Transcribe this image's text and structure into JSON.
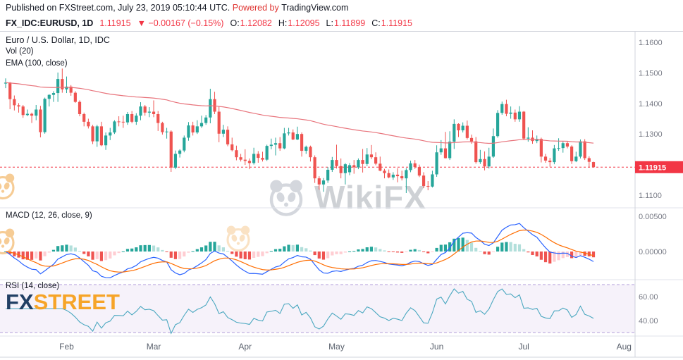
{
  "publish_bar": {
    "prefix": "Published on ",
    "site": "FXStreet.com",
    "datetime": ", July 23, 2019 05:10:44 UTC. ",
    "powered_by": "Powered by ",
    "provider": "TradingView.com"
  },
  "symbol_bar": {
    "symbol": "FX_IDC:EURUSD, 1D",
    "last": "1.11915",
    "change": "▼ −0.00167 (−0.15%)",
    "o_label": "O:",
    "o": "1.12082",
    "h_label": "H:",
    "h": "1.12095",
    "l_label": "L:",
    "l": "1.11899",
    "c_label": "C:",
    "c": "1.11915"
  },
  "main_pane": {
    "legend_title": "Euro / U.S. Dollar, 1D, IDC",
    "legend_vol": "Vol (20)",
    "legend_ema": "EMA (100, close)",
    "price_labels": [
      "1.1600",
      "1.1500",
      "1.1400",
      "1.1300",
      "1.1100"
    ],
    "price_badge": "1.11915"
  },
  "macd_pane": {
    "legend": "MACD (12, 26, close, 9)",
    "axis_labels": [
      "0.00500",
      "0.00000"
    ]
  },
  "rsi_pane": {
    "legend": "RSI (14, close)",
    "axis_labels": [
      "60.00",
      "40.00"
    ]
  },
  "watermarks": {
    "center": "WikiFX",
    "bottom_left_fx": "FX",
    "bottom_left_street": "STREET"
  },
  "colors": {
    "up": "#26a69a",
    "down": "#ef5350",
    "accent_red": "#f23645",
    "ema": "#e8747c",
    "macd_line": "#2962ff",
    "signal_line": "#ff6d00",
    "hist_up": "#26a69a",
    "hist_up_fade": "#b2dfdb",
    "hist_down": "#ef5350",
    "hist_down_fade": "#ffcdd2",
    "rsi_line": "#4ba8c0",
    "rsi_band_fill": "rgba(123,77,182,0.07)",
    "rsi_band_line": "#b39ddb",
    "axis_text": "#787b86",
    "separator": "#e0e3eb",
    "frame": "#d1d4dc"
  },
  "chart_data": {
    "type": "candlestick",
    "symbol": "FX_IDC:EURUSD",
    "interval": "1D",
    "title": "Euro / U.S. Dollar, 1D, IDC",
    "last_price": 1.11915,
    "today_ohlc": {
      "open": 1.12082,
      "high": 1.12095,
      "low": 1.11899,
      "close": 1.11915
    },
    "price_axis_ticks": [
      1.16,
      1.15,
      1.14,
      1.13,
      1.11
    ],
    "macd_axis_ticks": [
      0.005,
      0.0
    ],
    "rsi_axis_ticks": [
      60,
      40
    ],
    "rsi_band": [
      70,
      30
    ],
    "indicators": {
      "ema_period": 100,
      "macd": {
        "fast": 12,
        "slow": 26,
        "source": "close",
        "signal": 9
      },
      "rsi": {
        "period": 14,
        "source": "close"
      },
      "vol_ma": 20
    },
    "months": [
      {
        "label": "Feb",
        "index": 14
      },
      {
        "label": "Mar",
        "index": 34
      },
      {
        "label": "Apr",
        "index": 55
      },
      {
        "label": "May",
        "index": 76
      },
      {
        "label": "Jun",
        "index": 99
      },
      {
        "label": "Jul",
        "index": 119
      },
      {
        "label": "Aug",
        "index": 142
      }
    ],
    "candles": [
      [
        1.1465,
        1.1482,
        1.145,
        1.1468
      ],
      [
        1.1468,
        1.147,
        1.1381,
        1.1414
      ],
      [
        1.1414,
        1.1426,
        1.1377,
        1.1394
      ],
      [
        1.1394,
        1.1401,
        1.137,
        1.139
      ],
      [
        1.139,
        1.1395,
        1.1353,
        1.1362
      ],
      [
        1.1362,
        1.138,
        1.1358,
        1.1366
      ],
      [
        1.1366,
        1.137,
        1.1336,
        1.136
      ],
      [
        1.136,
        1.1395,
        1.1345,
        1.138
      ],
      [
        1.138,
        1.1392,
        1.1289,
        1.1306
      ],
      [
        1.1306,
        1.1419,
        1.1301,
        1.1415
      ],
      [
        1.1415,
        1.143,
        1.139,
        1.1428
      ],
      [
        1.1428,
        1.144,
        1.1405,
        1.1434
      ],
      [
        1.1434,
        1.1501,
        1.1405,
        1.148
      ],
      [
        1.148,
        1.1514,
        1.1435,
        1.1446
      ],
      [
        1.1446,
        1.1488,
        1.1434,
        1.1455
      ],
      [
        1.1455,
        1.146,
        1.1425,
        1.1435
      ],
      [
        1.1435,
        1.144,
        1.1402,
        1.1405
      ],
      [
        1.1405,
        1.141,
        1.1358,
        1.1365
      ],
      [
        1.1365,
        1.137,
        1.1325,
        1.134
      ],
      [
        1.134,
        1.135,
        1.1318,
        1.1325
      ],
      [
        1.1325,
        1.133,
        1.1267,
        1.1276
      ],
      [
        1.1276,
        1.133,
        1.1258,
        1.1325
      ],
      [
        1.1325,
        1.134,
        1.126,
        1.1263
      ],
      [
        1.1263,
        1.1305,
        1.1248,
        1.1295
      ],
      [
        1.1295,
        1.132,
        1.128,
        1.1305
      ],
      [
        1.1305,
        1.1345,
        1.13,
        1.1341
      ],
      [
        1.1341,
        1.1358,
        1.1325,
        1.134
      ],
      [
        1.134,
        1.136,
        1.132,
        1.1338
      ],
      [
        1.1338,
        1.1372,
        1.133,
        1.1365
      ],
      [
        1.1365,
        1.1375,
        1.1335,
        1.134
      ],
      [
        1.134,
        1.1368,
        1.133,
        1.136
      ],
      [
        1.136,
        1.1404,
        1.1345,
        1.139
      ],
      [
        1.139,
        1.1395,
        1.136,
        1.137
      ],
      [
        1.137,
        1.1388,
        1.1355,
        1.1373
      ],
      [
        1.1373,
        1.141,
        1.1355,
        1.1365
      ],
      [
        1.1365,
        1.1375,
        1.131,
        1.1336
      ],
      [
        1.1336,
        1.134,
        1.1298,
        1.1306
      ],
      [
        1.1306,
        1.132,
        1.1285,
        1.1308
      ],
      [
        1.1308,
        1.1312,
        1.1176,
        1.119
      ],
      [
        1.119,
        1.1246,
        1.1185,
        1.1235
      ],
      [
        1.1235,
        1.125,
        1.1223,
        1.1246
      ],
      [
        1.1246,
        1.1295,
        1.124,
        1.1288
      ],
      [
        1.1288,
        1.1339,
        1.1278,
        1.1328
      ],
      [
        1.1328,
        1.134,
        1.1295,
        1.1305
      ],
      [
        1.1305,
        1.1345,
        1.13,
        1.1325
      ],
      [
        1.1325,
        1.136,
        1.132,
        1.1336
      ],
      [
        1.1336,
        1.1362,
        1.133,
        1.1354
      ],
      [
        1.1354,
        1.1448,
        1.1335,
        1.1414
      ],
      [
        1.1414,
        1.1438,
        1.1365,
        1.1373
      ],
      [
        1.1373,
        1.139,
        1.1273,
        1.1301
      ],
      [
        1.1301,
        1.133,
        1.129,
        1.1314
      ],
      [
        1.1314,
        1.1325,
        1.126,
        1.1266
      ],
      [
        1.1266,
        1.1288,
        1.1243,
        1.1247
      ],
      [
        1.1247,
        1.1262,
        1.1214,
        1.1224
      ],
      [
        1.1224,
        1.1235,
        1.121,
        1.1216
      ],
      [
        1.1216,
        1.125,
        1.1199,
        1.1212
      ],
      [
        1.1212,
        1.122,
        1.1185,
        1.1205
      ],
      [
        1.1205,
        1.1255,
        1.12,
        1.1235
      ],
      [
        1.1235,
        1.1244,
        1.1206,
        1.1222
      ],
      [
        1.1222,
        1.1242,
        1.121,
        1.1216
      ],
      [
        1.1216,
        1.1265,
        1.1212,
        1.1261
      ],
      [
        1.1261,
        1.1285,
        1.125,
        1.1265
      ],
      [
        1.1265,
        1.1288,
        1.123,
        1.127
      ],
      [
        1.127,
        1.129,
        1.1245,
        1.1253
      ],
      [
        1.1253,
        1.132,
        1.125,
        1.1302
      ],
      [
        1.1302,
        1.132,
        1.1295,
        1.1305
      ],
      [
        1.1305,
        1.1315,
        1.128,
        1.1282
      ],
      [
        1.1282,
        1.1324,
        1.128,
        1.13
      ],
      [
        1.13,
        1.1305,
        1.1226,
        1.1245
      ],
      [
        1.1245,
        1.1262,
        1.1235,
        1.1258
      ],
      [
        1.1258,
        1.1262,
        1.121,
        1.1224
      ],
      [
        1.1224,
        1.123,
        1.114,
        1.1155
      ],
      [
        1.1155,
        1.1162,
        1.1118,
        1.1135
      ],
      [
        1.1135,
        1.1156,
        1.1111,
        1.1148
      ],
      [
        1.1148,
        1.1192,
        1.114,
        1.1183
      ],
      [
        1.1183,
        1.1225,
        1.1176,
        1.1215
      ],
      [
        1.1215,
        1.1265,
        1.1187,
        1.1195
      ],
      [
        1.1195,
        1.122,
        1.1155,
        1.1172
      ],
      [
        1.1172,
        1.1205,
        1.1135,
        1.1201
      ],
      [
        1.1175,
        1.1205,
        1.1165,
        1.1198
      ],
      [
        1.1198,
        1.1215,
        1.117,
        1.1191
      ],
      [
        1.1191,
        1.122,
        1.1185,
        1.1215
      ],
      [
        1.1215,
        1.1251,
        1.1174,
        1.1202
      ],
      [
        1.1202,
        1.1254,
        1.1195,
        1.1233
      ],
      [
        1.1233,
        1.1264,
        1.1218,
        1.1224
      ],
      [
        1.1224,
        1.124,
        1.1198,
        1.1203
      ],
      [
        1.1203,
        1.1226,
        1.1178,
        1.118
      ],
      [
        1.118,
        1.1186,
        1.1155,
        1.1172
      ],
      [
        1.1172,
        1.1184,
        1.1155,
        1.1158
      ],
      [
        1.1158,
        1.1175,
        1.115,
        1.1167
      ],
      [
        1.1167,
        1.1188,
        1.1142,
        1.1162
      ],
      [
        1.1162,
        1.118,
        1.1148,
        1.1155
      ],
      [
        1.1155,
        1.1188,
        1.1107,
        1.1182
      ],
      [
        1.1182,
        1.1213,
        1.1175,
        1.1204
      ],
      [
        1.1204,
        1.1215,
        1.1186,
        1.1192
      ],
      [
        1.1192,
        1.12,
        1.1159,
        1.1164
      ],
      [
        1.1164,
        1.1175,
        1.1123,
        1.113
      ],
      [
        1.113,
        1.1146,
        1.1116,
        1.1128
      ],
      [
        1.1128,
        1.118,
        1.1125,
        1.1168
      ],
      [
        1.1168,
        1.1263,
        1.116,
        1.124
      ],
      [
        1.124,
        1.128,
        1.1232,
        1.1253
      ],
      [
        1.1253,
        1.1307,
        1.122,
        1.1221
      ],
      [
        1.1221,
        1.1309,
        1.1215,
        1.1275
      ],
      [
        1.1275,
        1.1348,
        1.1251,
        1.1333
      ],
      [
        1.1333,
        1.1335,
        1.129,
        1.1312
      ],
      [
        1.1312,
        1.1338,
        1.1305,
        1.1327
      ],
      [
        1.1327,
        1.1344,
        1.1282,
        1.1287
      ],
      [
        1.1287,
        1.1298,
        1.1268,
        1.1276
      ],
      [
        1.1276,
        1.129,
        1.1203,
        1.1208
      ],
      [
        1.1208,
        1.1248,
        1.1202,
        1.1218
      ],
      [
        1.1218,
        1.1243,
        1.1181,
        1.1194
      ],
      [
        1.1194,
        1.1255,
        1.1187,
        1.1226
      ],
      [
        1.1226,
        1.1318,
        1.1222,
        1.1293
      ],
      [
        1.1293,
        1.1378,
        1.1288,
        1.1369
      ],
      [
        1.1369,
        1.1406,
        1.1363,
        1.1398
      ],
      [
        1.1398,
        1.1412,
        1.1358,
        1.1366
      ],
      [
        1.1366,
        1.139,
        1.135,
        1.137
      ],
      [
        1.137,
        1.138,
        1.134,
        1.1348
      ],
      [
        1.1348,
        1.1391,
        1.134,
        1.1373
      ],
      [
        1.1373,
        1.1375,
        1.128,
        1.1285
      ],
      [
        1.1285,
        1.1322,
        1.1275,
        1.1288
      ],
      [
        1.1288,
        1.1312,
        1.1268,
        1.1277
      ],
      [
        1.1277,
        1.1295,
        1.127,
        1.1284
      ],
      [
        1.1284,
        1.1288,
        1.1207,
        1.1226
      ],
      [
        1.1226,
        1.1235,
        1.1206,
        1.1213
      ],
      [
        1.1213,
        1.1222,
        1.1193,
        1.1208
      ],
      [
        1.1208,
        1.1264,
        1.1201,
        1.1253
      ],
      [
        1.1253,
        1.1286,
        1.1245,
        1.1254
      ],
      [
        1.1254,
        1.1275,
        1.1239,
        1.127
      ],
      [
        1.127,
        1.1276,
        1.1253,
        1.1259
      ],
      [
        1.1259,
        1.1263,
        1.1202,
        1.1211
      ],
      [
        1.1211,
        1.1242,
        1.1208,
        1.1226
      ],
      [
        1.1226,
        1.1282,
        1.122,
        1.1276
      ],
      [
        1.1276,
        1.1283,
        1.1215,
        1.1221
      ],
      [
        1.1221,
        1.1227,
        1.119,
        1.1209
      ],
      [
        1.12082,
        1.12095,
        1.11899,
        1.11915
      ]
    ]
  }
}
